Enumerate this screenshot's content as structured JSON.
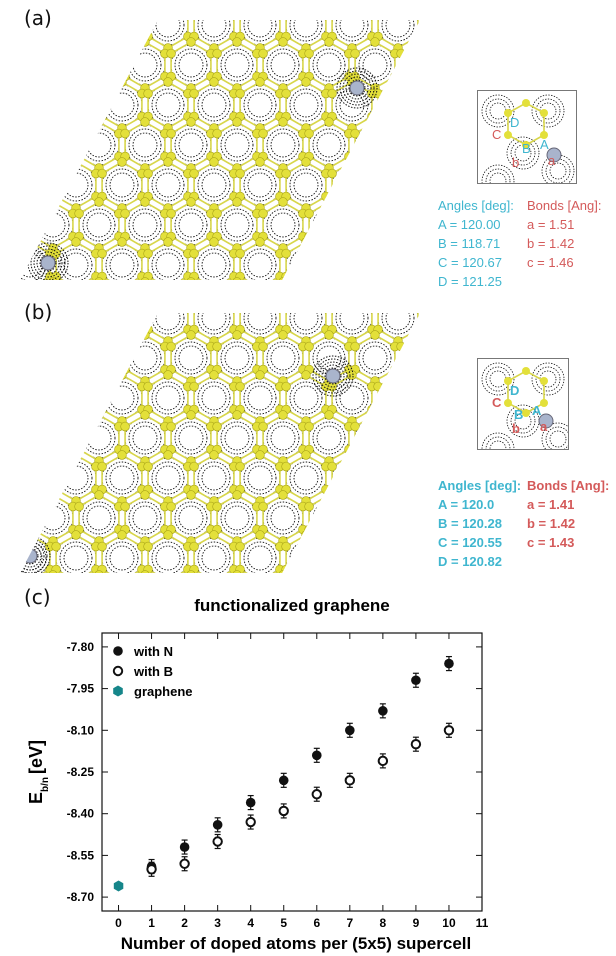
{
  "panel_a": {
    "label": "(a)",
    "angles_title": "Angles [deg]:",
    "angles": [
      "A = 120.00",
      "B = 118.71",
      "C = 120.67",
      "D = 121.25"
    ],
    "bonds_title": "Bonds [Ang]:",
    "bonds": [
      "a = 1.51",
      "b = 1.42",
      "c = 1.46"
    ],
    "inset_letters": [
      "A",
      "B",
      "D",
      "C",
      "a",
      "b"
    ]
  },
  "panel_b": {
    "label": "(b)",
    "angles_title": "Angles [deg]:",
    "angles": [
      "A = 120.0",
      "B = 120.28",
      "C = 120.55",
      "D = 120.82"
    ],
    "bonds_title": "Bonds [Ang]:",
    "bonds": [
      "a = 1.41",
      "b = 1.42",
      "c = 1.43"
    ],
    "inset_letters": [
      "A",
      "B",
      "D",
      "C",
      "a",
      "b"
    ]
  },
  "panel_c": {
    "label": "(c)"
  },
  "colors": {
    "carbon": "#e3e03a",
    "bond": "#d8d64a",
    "dopant": "#a9b4cc",
    "graphene_marker": "#16868a",
    "angle_text": "#3fb6cf",
    "bond_text": "#d45a5a"
  },
  "chart_data": {
    "type": "scatter",
    "title": "functionalized graphene",
    "xlabel": "Number of doped atoms per (5x5) supercell",
    "ylabel_main": "E",
    "ylabel_sub": "b/n",
    "ylabel_unit": "[eV]",
    "xlim": [
      -0.5,
      11
    ],
    "ylim": [
      -8.75,
      -7.75
    ],
    "xticks": [
      "0",
      "1",
      "2",
      "3",
      "4",
      "5",
      "6",
      "7",
      "8",
      "9",
      "10",
      "11"
    ],
    "yticks": [
      "-7.80",
      "-7.95",
      "-8.10",
      "-8.25",
      "-8.40",
      "-8.55",
      "-8.70"
    ],
    "ytick_values": [
      -7.8,
      -7.95,
      -8.1,
      -8.25,
      -8.4,
      -8.55,
      -8.7
    ],
    "legend_position": "top-left",
    "series": [
      {
        "name": "with N",
        "marker": "filled-circle",
        "x": [
          1,
          2,
          3,
          4,
          5,
          6,
          7,
          8,
          9,
          10
        ],
        "y": [
          -8.59,
          -8.52,
          -8.44,
          -8.36,
          -8.28,
          -8.19,
          -8.1,
          -8.03,
          -7.92,
          -7.86
        ]
      },
      {
        "name": "with B",
        "marker": "open-circle",
        "x": [
          1,
          2,
          3,
          4,
          5,
          6,
          7,
          8,
          9,
          10
        ],
        "y": [
          -8.6,
          -8.58,
          -8.5,
          -8.43,
          -8.39,
          -8.33,
          -8.28,
          -8.21,
          -8.15,
          -8.1
        ]
      },
      {
        "name": "graphene",
        "marker": "hexagon",
        "x": [
          0
        ],
        "y": [
          -8.66
        ]
      }
    ]
  }
}
